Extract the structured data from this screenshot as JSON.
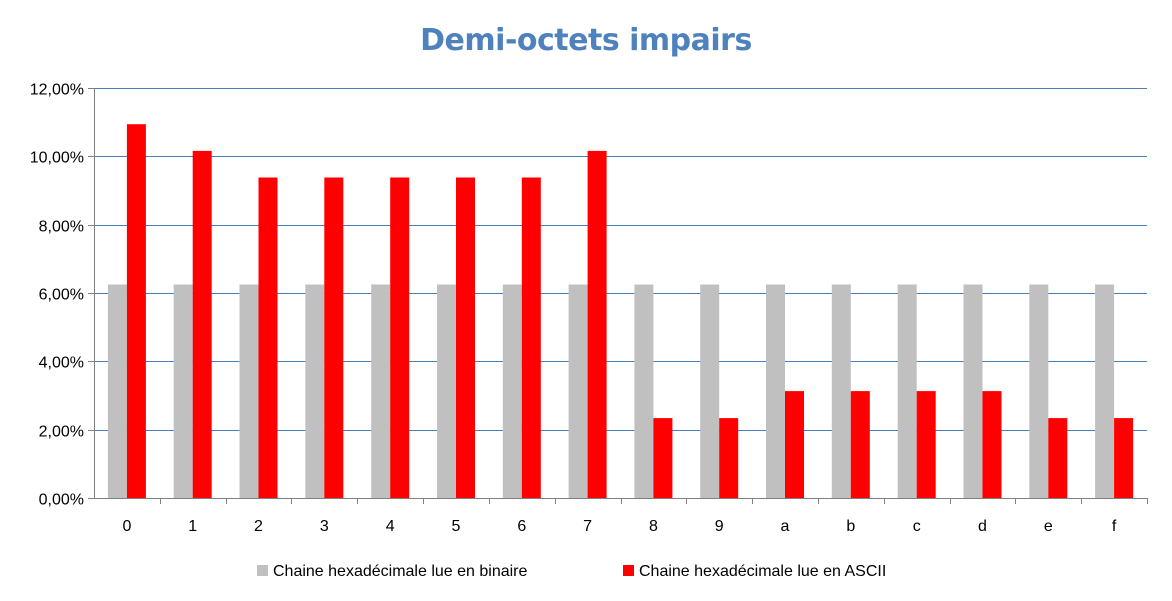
{
  "colors": {
    "title": "#4f81bd",
    "grid": "#4a7ebb",
    "axis": "#808080",
    "series_binaire": "#c0c0c0",
    "series_ascii": "#ff0000"
  },
  "chart_data": {
    "type": "bar",
    "title": "Demi-octets impairs",
    "xlabel": "",
    "ylabel": "",
    "categories": [
      "0",
      "1",
      "2",
      "3",
      "4",
      "5",
      "6",
      "7",
      "8",
      "9",
      "a",
      "b",
      "c",
      "d",
      "e",
      "f"
    ],
    "series": [
      {
        "name": "Chaine hexadécimale lue en binaire",
        "values": [
          6.25,
          6.25,
          6.25,
          6.25,
          6.25,
          6.25,
          6.25,
          6.25,
          6.25,
          6.25,
          6.25,
          6.25,
          6.25,
          6.25,
          6.25,
          6.25
        ]
      },
      {
        "name": "Chaine hexadécimale lue en ASCII",
        "values": [
          10.94,
          10.16,
          9.38,
          9.38,
          9.38,
          9.38,
          9.38,
          10.16,
          2.34,
          2.34,
          3.13,
          3.13,
          3.13,
          3.13,
          2.34,
          2.34
        ]
      }
    ],
    "ylim": [
      0,
      12
    ],
    "yticks": [
      0,
      2,
      4,
      6,
      8,
      10,
      12
    ],
    "ytick_labels": [
      "0,00%",
      "2,00%",
      "4,00%",
      "6,00%",
      "8,00%",
      "10,00%",
      "12,00%"
    ],
    "grid": true,
    "legend": "bottom"
  }
}
